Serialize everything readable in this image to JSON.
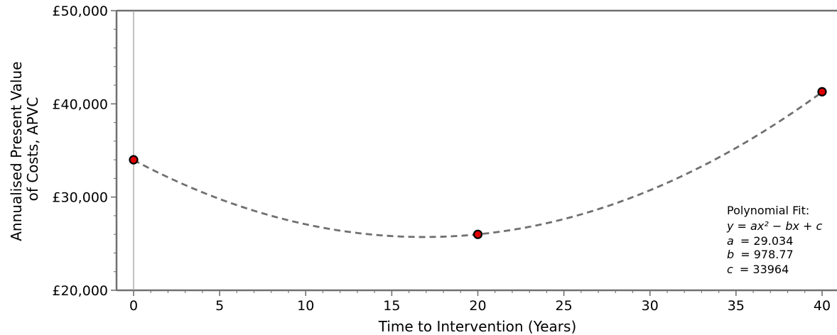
{
  "chart_data": {
    "type": "scatter",
    "xlabel": "Time to Intervention (Years)",
    "ylabel_lines": [
      "Annualised Present Value",
      "of Costs, APVC"
    ],
    "xlim": [
      -1,
      41
    ],
    "ylim": [
      20000,
      50000
    ],
    "x_ticks": [
      0,
      5,
      10,
      15,
      20,
      25,
      30,
      35,
      40
    ],
    "x_tick_labels": [
      "0",
      "5",
      "10",
      "15",
      "20",
      "25",
      "30",
      "35",
      "40"
    ],
    "y_ticks": [
      20000,
      30000,
      40000,
      50000
    ],
    "y_tick_labels": [
      "£20,000",
      "£30,000",
      "£40,000",
      "£50,000"
    ],
    "points": [
      {
        "x": 0,
        "y": 34000
      },
      {
        "x": 20,
        "y": 26000
      },
      {
        "x": 40,
        "y": 41300
      }
    ],
    "fit": {
      "a": 29.034,
      "b": 978.77,
      "c": 33964
    },
    "annotation": {
      "heading": "Polynomial Fit:",
      "equation": "y = ax² − bx + c",
      "a_label": "a",
      "a_value": "= 29.034",
      "b_label": "b",
      "b_value": "= 978.77",
      "c_label": "c",
      "c_value": "= 33964"
    },
    "colors": {
      "marker_fill": "#e00000",
      "marker_edge": "#000000",
      "fit_line": "#707070",
      "axis": "#707070",
      "vline": "#9a9a9a"
    },
    "grid": false
  }
}
